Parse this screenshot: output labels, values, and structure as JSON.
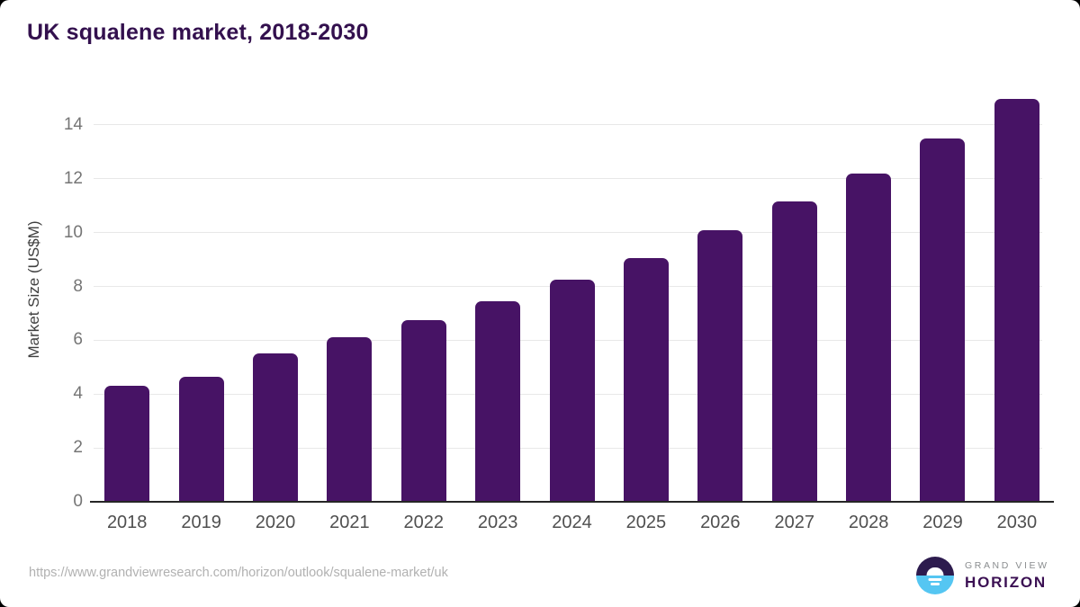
{
  "page": {
    "title": "UK squalene market, 2018-2030",
    "source_url": "https://www.grandviewresearch.com/horizon/outlook/squalene-market/uk"
  },
  "chart_data": {
    "type": "bar",
    "title": "UK squalene market, 2018-2030",
    "categories": [
      "2018",
      "2019",
      "2020",
      "2021",
      "2022",
      "2023",
      "2024",
      "2025",
      "2026",
      "2027",
      "2028",
      "2029",
      "2030"
    ],
    "values": [
      4.3,
      4.65,
      5.5,
      6.1,
      6.75,
      7.45,
      8.25,
      9.05,
      10.1,
      11.15,
      12.2,
      13.5,
      14.95
    ],
    "xlabel": "",
    "ylabel": "Market Size (US$M)",
    "yticks": [
      0,
      2,
      4,
      6,
      8,
      10,
      12,
      14
    ],
    "ylim": [
      0,
      15.2
    ],
    "grid": true,
    "legend": false,
    "bar_color": "#471365"
  },
  "logo": {
    "icon": "horizon-sun-icon",
    "line1": "GRAND VIEW",
    "line2": "HORIZON"
  },
  "colors": {
    "title": "#33104e",
    "axis_title": "#3f3f3f",
    "tick": "#757575",
    "xtick": "#4f4f4f",
    "url": "#b1b1b1",
    "baseline": "#262626",
    "grid": "#e8e8e8",
    "bar": "#471365",
    "logo_top": "#2d1b4e",
    "logo_bottom": "#55c6f2",
    "logo_gray": "#8a8d8f",
    "logo_purple": "#3b1053"
  }
}
